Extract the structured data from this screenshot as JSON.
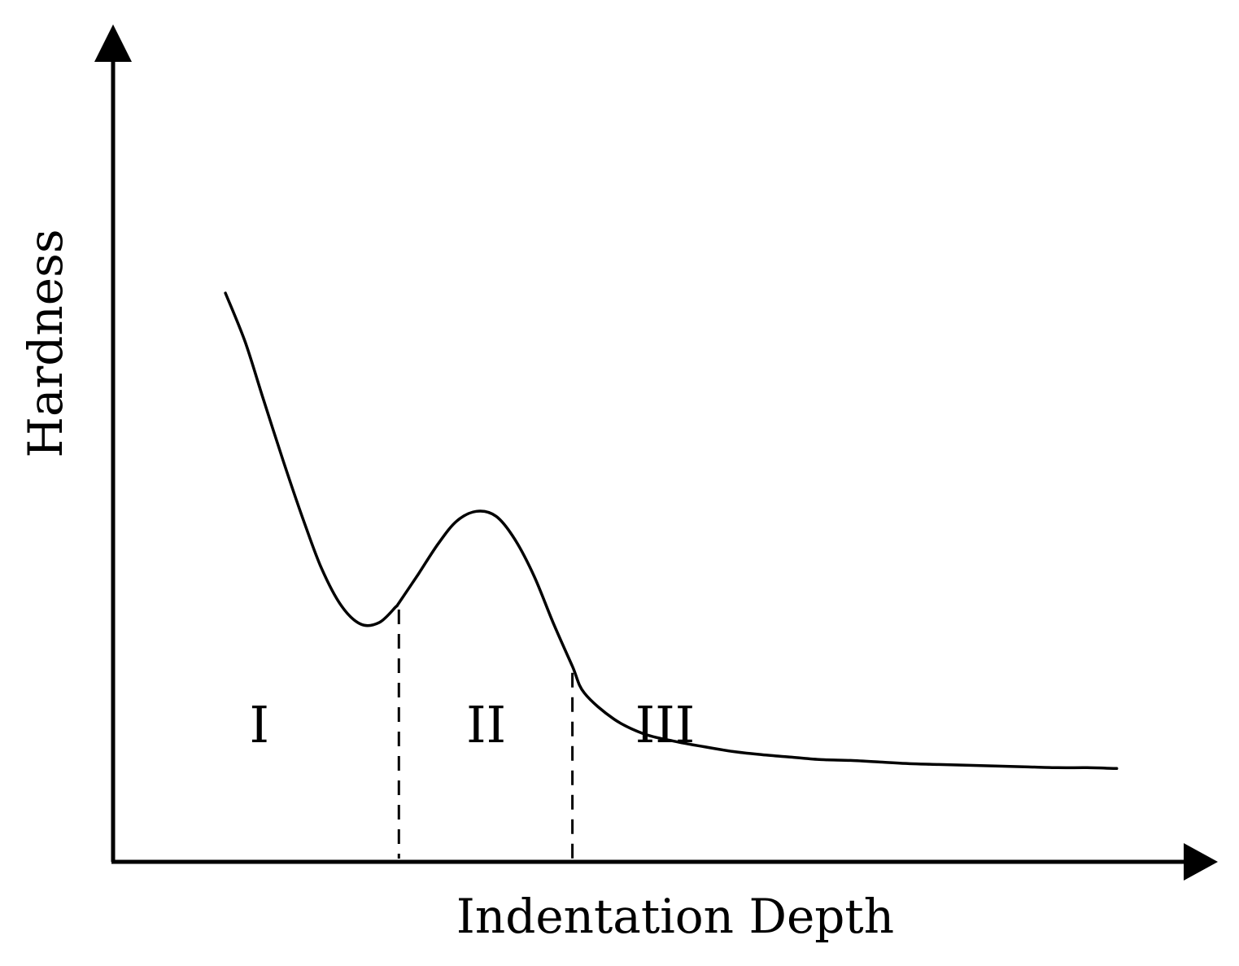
{
  "chart_data": {
    "type": "line",
    "title": "",
    "xlabel": "Indentation Depth",
    "ylabel": "Hardness",
    "xlim": [
      0,
      100
    ],
    "ylim": [
      0,
      100
    ],
    "grid": false,
    "legend": "none",
    "series": [
      {
        "x": [
          10.3,
          12.1,
          13.8,
          15.6,
          17.4,
          19.1,
          20.9,
          22.7,
          24.4,
          25.9,
          26.2,
          28,
          29.8,
          31.5,
          33.3,
          35.1,
          36.8,
          38.6,
          40.3,
          42.1,
          43.2,
          45.9,
          48.6,
          51.3,
          54.1,
          56.8,
          59.5,
          62.2,
          64.9,
          67.6,
          70.3,
          73,
          75.7,
          78.5,
          81.2,
          83.9,
          86.6,
          89.3,
          92
        ],
        "y": [
          70.1,
          64.1,
          56.9,
          49.4,
          42.3,
          36.2,
          31.6,
          29.3,
          29.5,
          31.4,
          31.9,
          35.5,
          39.2,
          42,
          43.2,
          42.6,
          39.8,
          35.2,
          29.6,
          24.1,
          20.8,
          17.6,
          15.8,
          14.9,
          14.2,
          13.6,
          13.2,
          12.9,
          12.6,
          12.5,
          12.3,
          12.1,
          12,
          11.9,
          11.8,
          11.7,
          11.6,
          11.6,
          11.5
        ]
      }
    ],
    "dividers": [
      26.2,
      42.1
    ],
    "regions": [
      {
        "label": "I",
        "x": 13.4
      },
      {
        "label": "II",
        "x": 34.2
      },
      {
        "label": "III",
        "x": 50.6
      }
    ]
  }
}
